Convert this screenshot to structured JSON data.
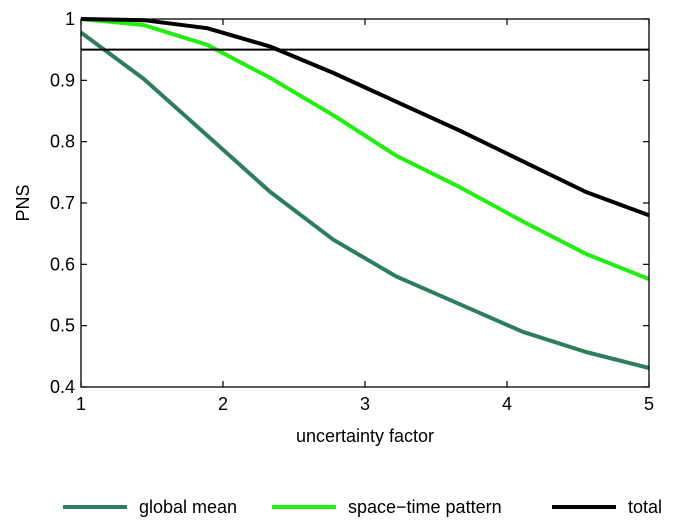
{
  "chart_data": {
    "type": "line",
    "xlabel": "uncertainty factor",
    "ylabel": "PNS",
    "xlim": [
      1,
      5
    ],
    "ylim": [
      0.4,
      1.0
    ],
    "xticks": [
      "1",
      "2",
      "3",
      "4",
      "5"
    ],
    "yticks": [
      "0.4",
      "0.5",
      "0.6",
      "0.7",
      "0.8",
      "0.9",
      "1"
    ],
    "x": [
      1.0,
      1.444,
      1.889,
      2.333,
      2.778,
      3.222,
      3.667,
      4.111,
      4.556,
      5.0
    ],
    "series": [
      {
        "name": "global mean",
        "color": "#2e7d5b",
        "values": [
          0.978,
          0.902,
          0.81,
          0.718,
          0.64,
          0.58,
          0.535,
          0.49,
          0.457,
          0.431
        ]
      },
      {
        "name": "space−time pattern",
        "color": "#22ee11",
        "values": [
          1.0,
          0.99,
          0.958,
          0.904,
          0.843,
          0.777,
          0.726,
          0.67,
          0.617,
          0.576
        ]
      },
      {
        "name": "total",
        "color": "#000000",
        "values": [
          1.0,
          0.998,
          0.985,
          0.955,
          0.912,
          0.865,
          0.818,
          0.768,
          0.718,
          0.68
        ]
      }
    ],
    "reference_line": {
      "y": 0.95,
      "color": "#000000"
    },
    "grid": false,
    "legend_placement": "bottom"
  }
}
